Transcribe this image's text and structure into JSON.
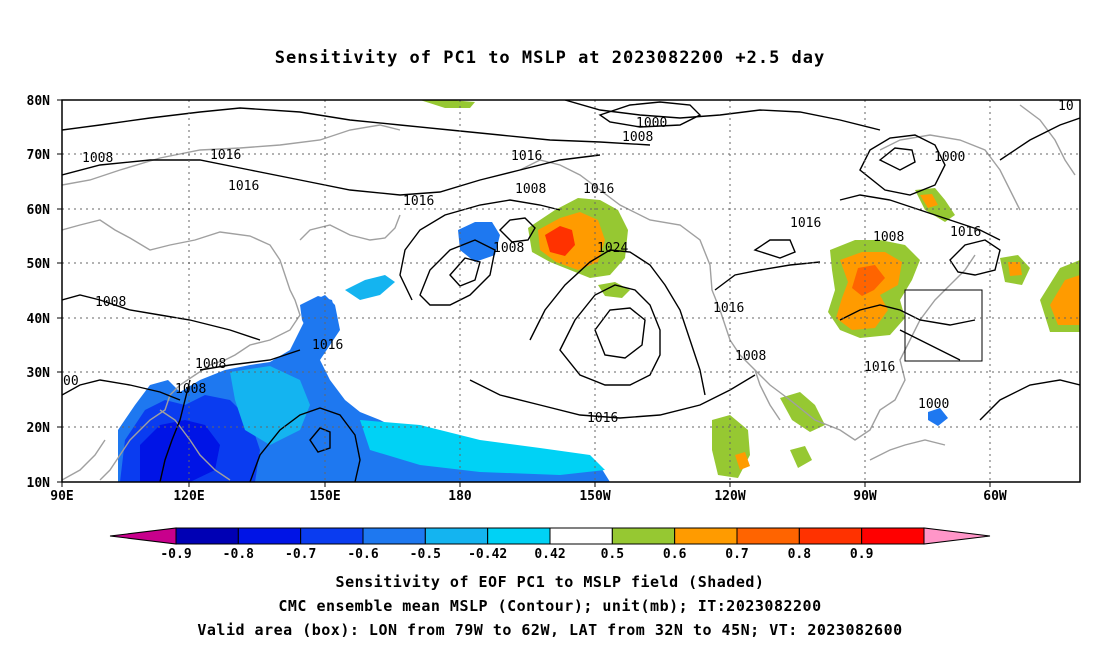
{
  "title": "Sensitivity of PC1 to MSLP at 2023082200 +2.5 day",
  "lat_labels": [
    "80N",
    "70N",
    "60N",
    "50N",
    "40N",
    "30N",
    "20N",
    "10N"
  ],
  "lon_labels": [
    "90E",
    "120E",
    "150E",
    "180",
    "150W",
    "120W",
    "90W",
    "60W"
  ],
  "contour_labels": [
    "1000",
    "1008",
    "1008",
    "1016",
    "1016",
    "1016",
    "1008",
    "1016",
    "1016",
    "1008",
    "1000",
    "1024",
    "1016",
    "1016",
    "1008",
    "1008",
    "1016",
    "1016",
    "1008",
    "1008",
    "1016",
    "1008",
    "1000",
    "1016",
    "10",
    "00"
  ],
  "colorbar": {
    "ticks": [
      "-0.9",
      "-0.8",
      "-0.7",
      "-0.6",
      "-0.5",
      "-0.42",
      "0.42",
      "0.5",
      "0.6",
      "0.7",
      "0.8",
      "0.9"
    ],
    "colors": [
      "#c8008c",
      "#0000b4",
      "#0014e6",
      "#0a3cf0",
      "#1e78f0",
      "#14b4f0",
      "#00d2f5",
      "#ffffff",
      "#96c832",
      "#ff9b00",
      "#ff6400",
      "#ff3200",
      "#ff0000",
      "#ff96c8"
    ]
  },
  "captions": [
    "Sensitivity of EOF PC1 to MSLP field (Shaded)",
    "CMC ensemble mean MSLP (Contour); unit(mb); IT:2023082200",
    "Valid area (box): LON from 79W to 62W, LAT from 32N to 45N; VT: 2023082600"
  ]
}
